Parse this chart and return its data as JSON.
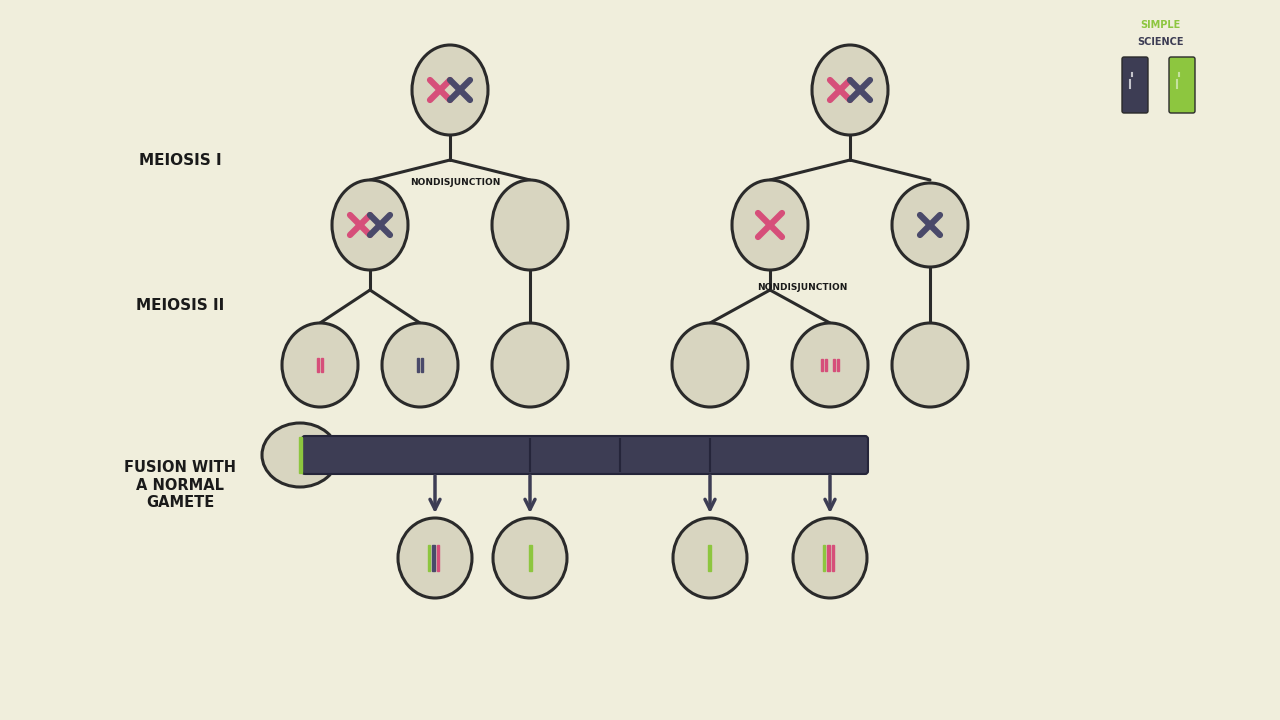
{
  "bg_color": "#f0eedc",
  "cell_color": "#d8d5c0",
  "cell_edge_color": "#2a2a2a",
  "line_color": "#2a2a2a",
  "pink_chrom": "#d64f7a",
  "dark_chrom": "#4a4a6a",
  "green_chrom": "#8dc63f",
  "arrow_bar_color": "#3d3d54",
  "text_color": "#1a1a1a",
  "label_fontsize": 11,
  "nondisjunction_fontsize": 6.5,
  "title": "NONDISJUNCTION",
  "meiosis1_label": "MEIOSIS I",
  "meiosis2_label": "MEIOSIS II",
  "fusion_label": "FUSION WITH\nA NORMAL\nGAMETE"
}
